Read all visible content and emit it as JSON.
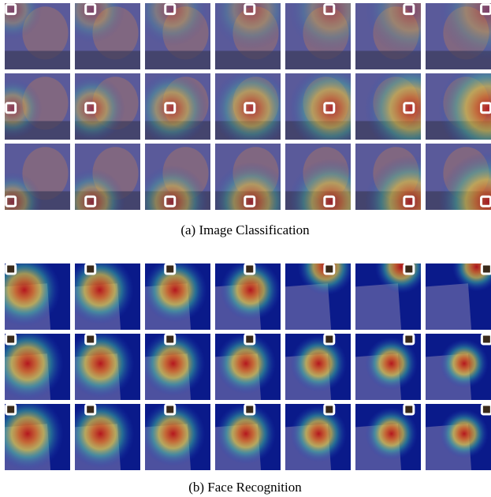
{
  "figure": {
    "panels": [
      {
        "caption": "(a) Image Classification"
      },
      {
        "caption": "(b) Face Recognition"
      }
    ]
  }
}
